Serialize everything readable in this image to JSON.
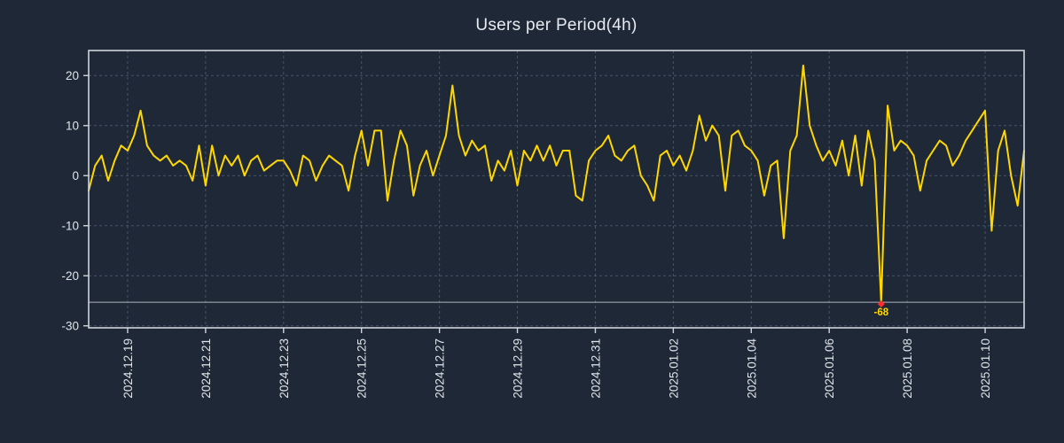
{
  "header": {
    "title": "Users per Period(4h)"
  },
  "colors": {
    "background": "#1e2836",
    "title_text": "#e8ecf1",
    "tick_text": "#e0e4e9",
    "grid": "#56637a",
    "border": "#cfd4da",
    "line": "#ffd700",
    "marker": "#ff2b2b",
    "annotation_text": "#ffd700",
    "min_line": "#c8cdd4"
  },
  "chart_data": {
    "type": "line",
    "title": "Users per Period(4h)",
    "x_start": "2024.12.18 00:00",
    "x_step_hours": 4,
    "values": [
      -3,
      2,
      4,
      -1,
      3,
      6,
      5,
      8,
      13,
      6,
      4,
      3,
      4,
      2,
      3,
      2,
      -1,
      6,
      -2,
      6,
      0,
      4,
      2,
      4,
      0,
      3,
      4,
      1,
      2,
      3,
      3,
      1,
      -2,
      4,
      3,
      -1,
      2,
      4,
      3,
      2,
      -3,
      4,
      9,
      2,
      9,
      9,
      -5,
      3,
      9,
      6,
      -4,
      2,
      5,
      0,
      4,
      8,
      18,
      8,
      4,
      7,
      5,
      6,
      -1,
      3,
      1,
      5,
      -2,
      5,
      3,
      6,
      3,
      6,
      2,
      5,
      5,
      -4,
      -5,
      3,
      5,
      6,
      8,
      4,
      3,
      5,
      6,
      0,
      -2,
      -5,
      4,
      5,
      2,
      4,
      1,
      5,
      12,
      7,
      10,
      8,
      -3,
      8,
      9,
      6,
      5,
      3,
      -4,
      2,
      3,
      -12.5,
      5,
      8,
      22,
      10,
      6,
      3,
      5,
      2,
      7,
      0,
      8,
      -2,
      9,
      3,
      -68,
      14,
      5,
      7,
      6,
      4,
      -3,
      3,
      5,
      7,
      6,
      2,
      4,
      7,
      9,
      11,
      13,
      -11,
      5,
      9,
      0,
      -6,
      5
    ],
    "x_tick_labels": [
      "2024.12.19",
      "2024.12.21",
      "2024.12.23",
      "2024.12.25",
      "2024.12.27",
      "2024.12.29",
      "2024.12.31",
      "2025.01.02",
      "2025.01.04",
      "2025.01.06",
      "2025.01.08",
      "2025.01.10"
    ],
    "x_tick_indices": [
      6,
      18,
      30,
      42,
      54,
      66,
      78,
      90,
      102,
      114,
      126,
      138
    ],
    "y_ticks": [
      20,
      10,
      0,
      -10,
      -20,
      -30
    ],
    "ylim": [
      -30.4,
      25
    ],
    "grid": true,
    "legend": false,
    "clip_value": -25.3,
    "min_annotation": {
      "index": 122,
      "value": -68,
      "label": "-68"
    }
  }
}
